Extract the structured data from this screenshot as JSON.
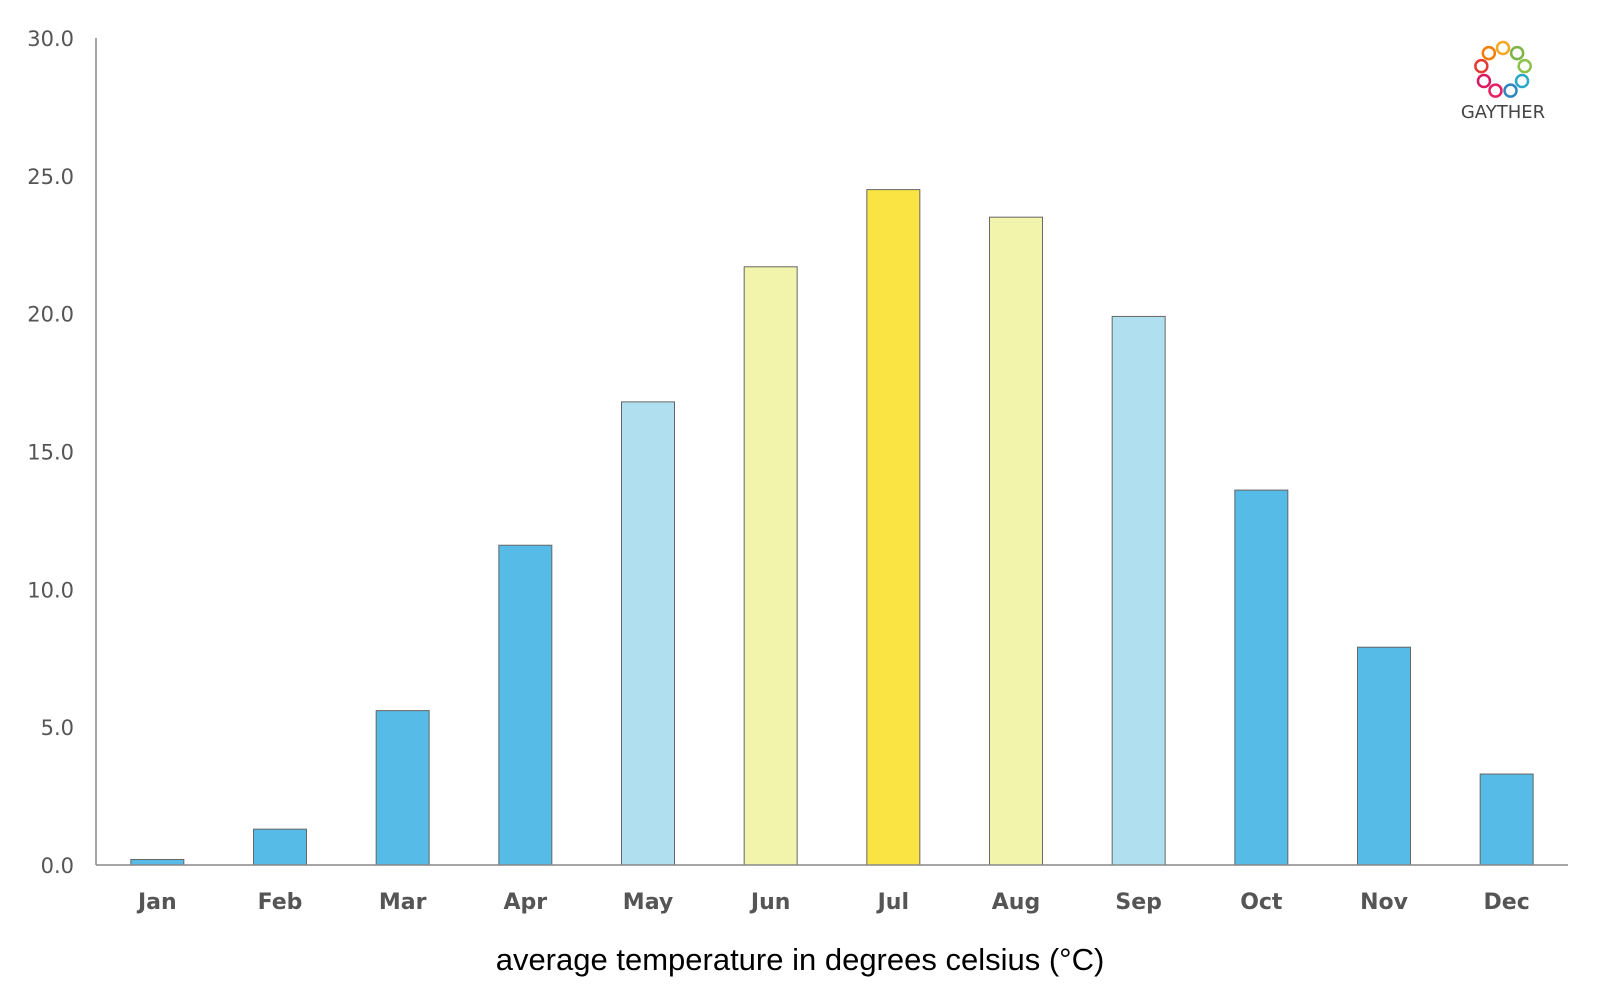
{
  "chart_data": {
    "type": "bar",
    "title": "",
    "xlabel": "average temperature in degrees celsius (°C)",
    "ylabel": "",
    "ylim": [
      0,
      30
    ],
    "yticks": [
      "0.0",
      "5.0",
      "10.0",
      "15.0",
      "20.0",
      "25.0",
      "30.0"
    ],
    "grid": false,
    "categories": [
      "Jan",
      "Feb",
      "Mar",
      "Apr",
      "May",
      "Jun",
      "Jul",
      "Aug",
      "Sep",
      "Oct",
      "Nov",
      "Dec"
    ],
    "values": [
      0.2,
      1.3,
      5.6,
      11.6,
      16.8,
      21.7,
      24.5,
      23.5,
      19.9,
      13.6,
      7.9,
      3.3
    ],
    "bar_colors": [
      "#56BBE6",
      "#56BBE6",
      "#56BBE6",
      "#56BBE6",
      "#B0DFF0",
      "#F2F4AC",
      "#F9E443",
      "#F2F4AC",
      "#B0DFF0",
      "#56BBE6",
      "#56BBE6",
      "#56BBE6"
    ]
  },
  "logo": {
    "text": "GAYTHER",
    "colors": [
      "#F5A623",
      "#7CB342",
      "#8BC34A",
      "#29A8C9",
      "#2E86C1",
      "#E91E63",
      "#D81B60",
      "#E53935",
      "#F57C00"
    ]
  }
}
